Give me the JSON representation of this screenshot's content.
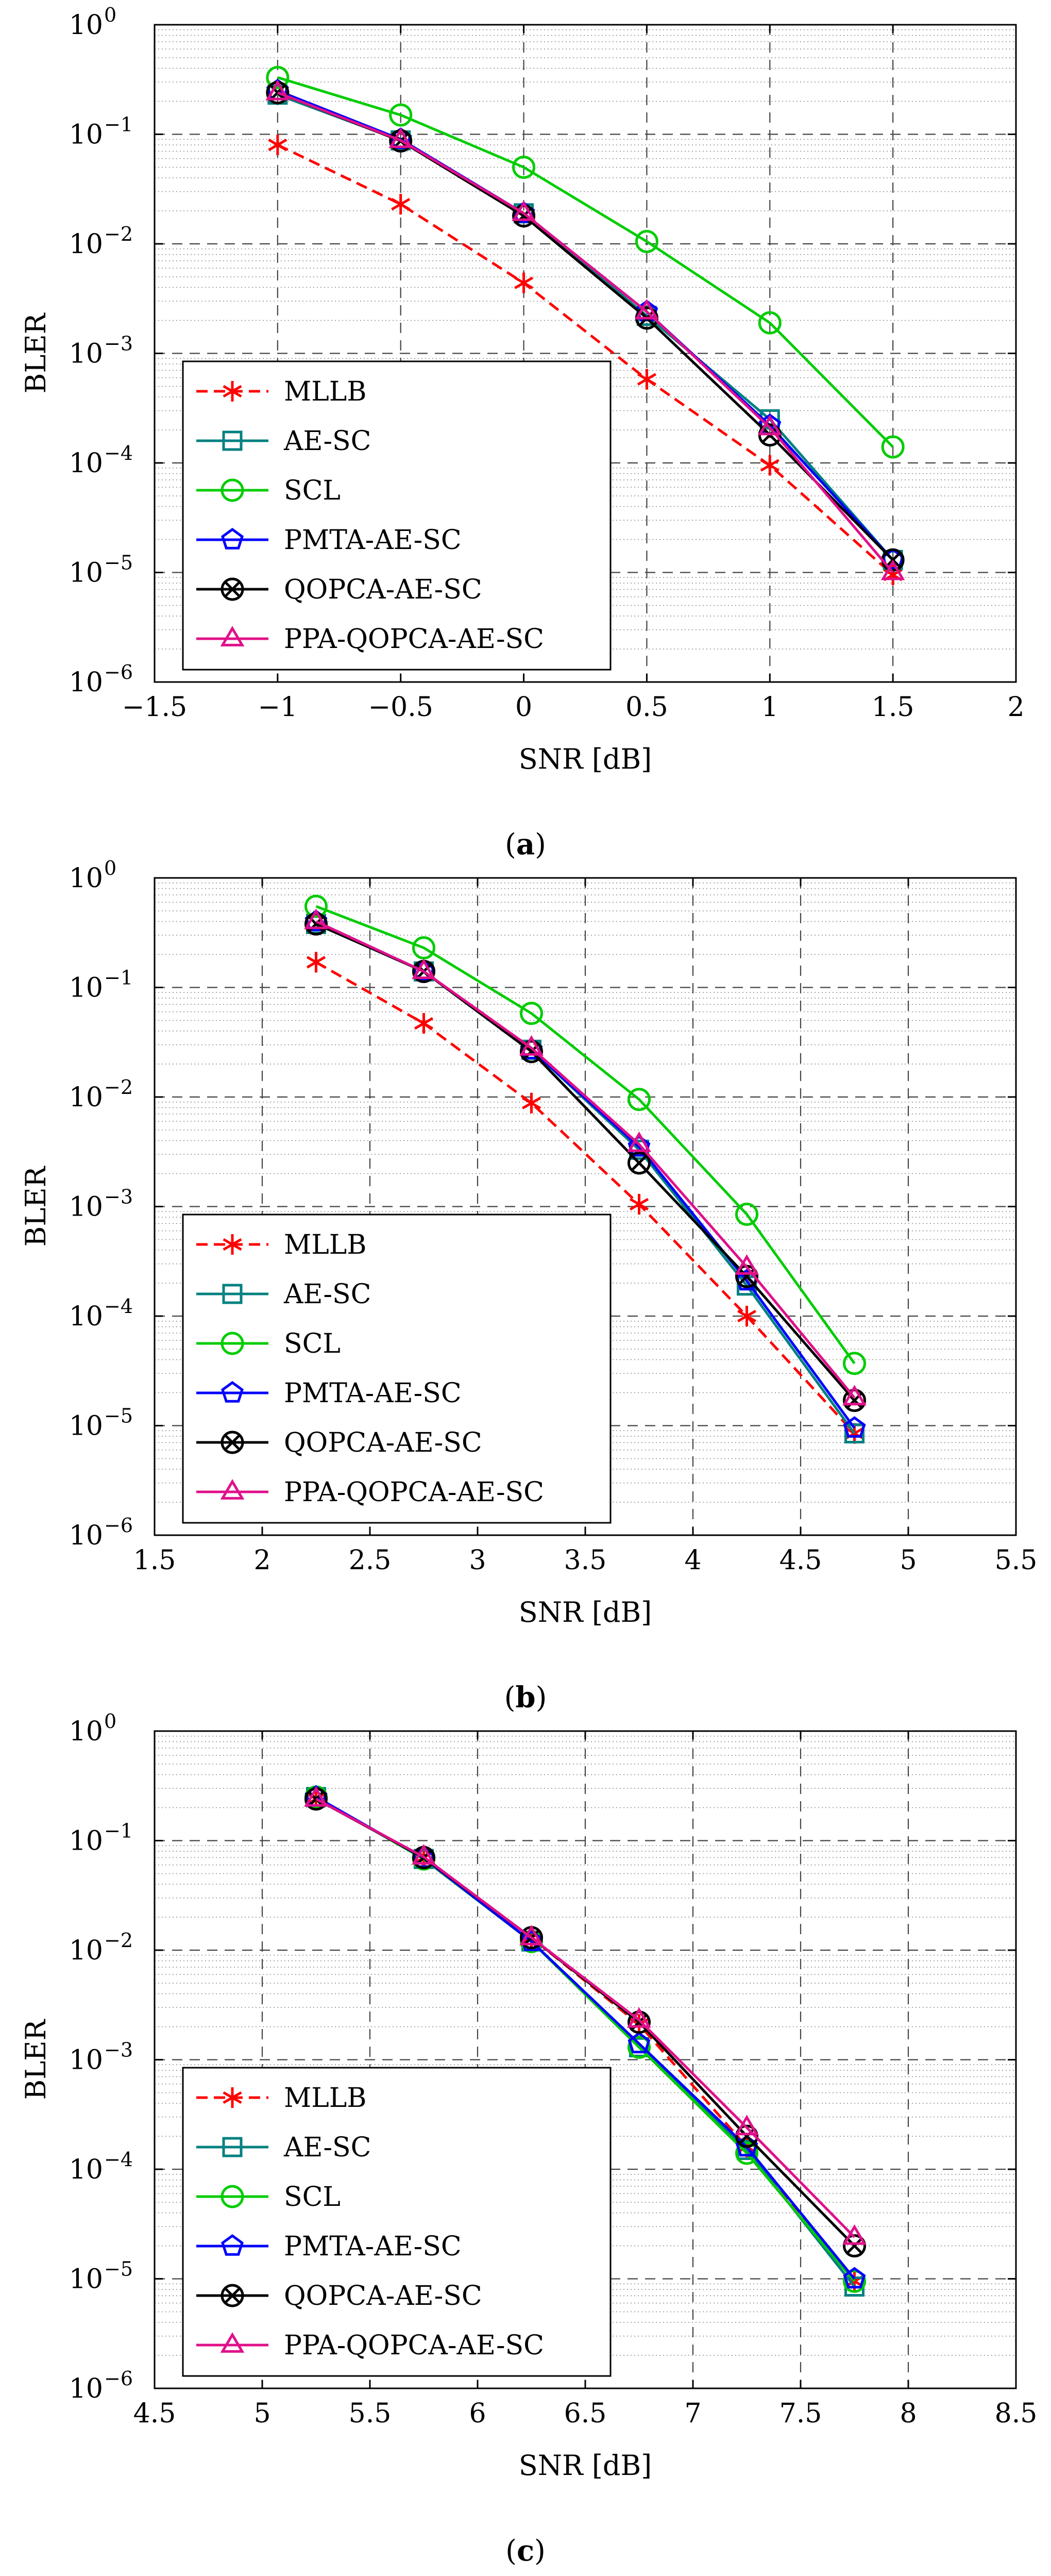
{
  "chart_data": [
    {
      "type": "line",
      "panel_label": "(a)",
      "xlabel": "SNR [dB]",
      "ylabel": "BLER",
      "xlim": [
        -1.5,
        2
      ],
      "ylim_log10": [
        -6,
        0
      ],
      "x_ticks": [
        -1.5,
        -1,
        -0.5,
        0,
        0.5,
        1,
        1.5,
        2
      ],
      "x_tick_labels": [
        "−1.5",
        "−1",
        "−0.5",
        "0",
        "0.5",
        "1",
        "1.5",
        "2"
      ],
      "y_tick_exponents": [
        0,
        -1,
        -2,
        -3,
        -4,
        -5,
        -6
      ],
      "y_tick_base": "10",
      "y_tick_exp_labels": [
        "0",
        "−1",
        "−2",
        "−3",
        "−4",
        "−5",
        "−6"
      ],
      "grid": true,
      "legend_position": "bottom-left",
      "series": [
        {
          "name": "MLLB",
          "color": "#ff0000",
          "marker": "asterisk",
          "dashed": true,
          "x": [
            -1,
            -0.5,
            0,
            0.5,
            1,
            1.5
          ],
          "y": [
            0.08,
            0.023,
            0.0044,
            0.00058,
            9.51e-05,
            9.5e-06
          ]
        },
        {
          "name": "AE-SC",
          "color": "#008080",
          "marker": "square",
          "dashed": false,
          "x": [
            -1,
            -0.5,
            0,
            0.5,
            1,
            1.5
          ],
          "y": [
            0.23,
            0.088,
            0.019,
            0.0022,
            0.00025,
            1.3e-05
          ]
        },
        {
          "name": "SCL",
          "color": "#00cc00",
          "marker": "circle",
          "dashed": false,
          "x": [
            -1,
            -0.5,
            0,
            0.5,
            1,
            1.5
          ],
          "y": [
            0.33,
            0.15,
            0.05,
            0.0105,
            0.0019,
            0.00014
          ]
        },
        {
          "name": "PMTA-AE-SC",
          "color": "#0000ff",
          "marker": "pentagon",
          "dashed": false,
          "x": [
            -1,
            -0.5,
            0,
            0.5,
            1,
            1.5
          ],
          "y": [
            0.25,
            0.09,
            0.019,
            0.0024,
            0.00022,
            1.3e-05
          ]
        },
        {
          "name": "QOPCA-AE-SC",
          "color": "#000000",
          "marker": "otimes",
          "dashed": false,
          "x": [
            -1,
            -0.5,
            0,
            0.5,
            1,
            1.5
          ],
          "y": [
            0.24,
            0.087,
            0.018,
            0.0021,
            0.00018,
            1.3e-05
          ]
        },
        {
          "name": "PPA-QOPCA-AE-SC",
          "color": "#e0108a",
          "marker": "triangle",
          "dashed": false,
          "x": [
            -1,
            -0.5,
            0,
            0.5,
            1,
            1.5
          ],
          "y": [
            0.24,
            0.088,
            0.019,
            0.0024,
            0.00021,
            1e-05
          ]
        }
      ]
    },
    {
      "type": "line",
      "panel_label": "(b)",
      "xlabel": "SNR [dB]",
      "ylabel": "BLER",
      "xlim": [
        1.5,
        5.5
      ],
      "ylim_log10": [
        -6,
        0
      ],
      "x_ticks": [
        1.5,
        2,
        2.5,
        3,
        3.5,
        4,
        4.5,
        5,
        5.5
      ],
      "x_tick_labels": [
        "1.5",
        "2",
        "2.5",
        "3",
        "3.5",
        "4",
        "4.5",
        "5",
        "5.5"
      ],
      "y_tick_exponents": [
        0,
        -1,
        -2,
        -3,
        -4,
        -5,
        -6
      ],
      "y_tick_base": "10",
      "y_tick_exp_labels": [
        "0",
        "−1",
        "−2",
        "−3",
        "−4",
        "−5",
        "−6"
      ],
      "grid": true,
      "legend_position": "bottom-left",
      "series": [
        {
          "name": "MLLB",
          "color": "#ff0000",
          "marker": "asterisk",
          "dashed": true,
          "x": [
            2.25,
            2.75,
            3.25,
            3.75,
            4.25,
            4.75
          ],
          "y": [
            0.17,
            0.047,
            0.0088,
            0.00105,
            0.0001,
            8.5e-06
          ]
        },
        {
          "name": "AE-SC",
          "color": "#008080",
          "marker": "square",
          "dashed": false,
          "x": [
            2.25,
            2.75,
            3.25,
            3.75,
            4.25,
            4.75
          ],
          "y": [
            0.38,
            0.14,
            0.027,
            0.0033,
            0.00019,
            8.5e-06
          ]
        },
        {
          "name": "SCL",
          "color": "#00cc00",
          "marker": "circle",
          "dashed": false,
          "x": [
            2.25,
            2.75,
            3.25,
            3.75,
            4.25,
            4.75
          ],
          "y": [
            0.55,
            0.23,
            0.058,
            0.0095,
            0.00085,
            3.7e-05
          ]
        },
        {
          "name": "PMTA-AE-SC",
          "color": "#0000ff",
          "marker": "pentagon",
          "dashed": false,
          "x": [
            2.25,
            2.75,
            3.25,
            3.75,
            4.25,
            4.75
          ],
          "y": [
            0.4,
            0.14,
            0.027,
            0.0035,
            0.00021,
            9.5e-06
          ]
        },
        {
          "name": "QOPCA-AE-SC",
          "color": "#000000",
          "marker": "otimes",
          "dashed": false,
          "x": [
            2.25,
            2.75,
            3.25,
            3.75,
            4.25,
            4.75
          ],
          "y": [
            0.38,
            0.14,
            0.026,
            0.0025,
            0.00023,
            1.7e-05
          ]
        },
        {
          "name": "PPA-QOPCA-AE-SC",
          "color": "#e0108a",
          "marker": "triangle",
          "dashed": false,
          "x": [
            2.25,
            2.75,
            3.25,
            3.75,
            4.25,
            4.75
          ],
          "y": [
            0.4,
            0.14,
            0.028,
            0.0037,
            0.00028,
            1.8e-05
          ]
        }
      ]
    },
    {
      "type": "line",
      "panel_label": "(c)",
      "xlabel": "SNR [dB]",
      "ylabel": "BLER",
      "xlim": [
        4.5,
        8.5
      ],
      "ylim_log10": [
        -6,
        0
      ],
      "x_ticks": [
        4.5,
        5,
        5.5,
        6,
        6.5,
        7,
        7.5,
        8,
        8.5
      ],
      "x_tick_labels": [
        "4.5",
        "5",
        "5.5",
        "6",
        "6.5",
        "7",
        "7.5",
        "8",
        "8.5"
      ],
      "y_tick_exponents": [
        0,
        -1,
        -2,
        -3,
        -4,
        -5,
        -6
      ],
      "y_tick_base": "10",
      "y_tick_exp_labels": [
        "0",
        "−1",
        "−2",
        "−3",
        "−4",
        "−5",
        "−6"
      ],
      "grid": true,
      "legend_position": "bottom-left",
      "series": [
        {
          "name": "MLLB",
          "color": "#ff0000",
          "marker": "asterisk",
          "dashed": true,
          "x": [
            5.25,
            5.75,
            6.25,
            6.75,
            7.25,
            7.75
          ],
          "y": [
            0.24,
            0.07,
            0.013,
            0.0021,
            0.00016,
            9.5e-06
          ]
        },
        {
          "name": "AE-SC",
          "color": "#008080",
          "marker": "square",
          "dashed": false,
          "x": [
            5.25,
            5.75,
            6.25,
            6.75,
            7.25,
            7.75
          ],
          "y": [
            0.25,
            0.068,
            0.012,
            0.0013,
            0.00015,
            8.5e-06
          ]
        },
        {
          "name": "SCL",
          "color": "#00cc00",
          "marker": "circle",
          "dashed": false,
          "x": [
            5.25,
            5.75,
            6.25,
            6.75,
            7.25,
            7.75
          ],
          "y": [
            0.25,
            0.068,
            0.012,
            0.0013,
            0.00014,
            9.5e-06
          ]
        },
        {
          "name": "PMTA-AE-SC",
          "color": "#0000ff",
          "marker": "pentagon",
          "dashed": false,
          "x": [
            5.25,
            5.75,
            6.25,
            6.75,
            7.25,
            7.75
          ],
          "y": [
            0.25,
            0.069,
            0.012,
            0.0014,
            0.00016,
            1e-05
          ]
        },
        {
          "name": "QOPCA-AE-SC",
          "color": "#000000",
          "marker": "otimes",
          "dashed": false,
          "x": [
            5.25,
            5.75,
            6.25,
            6.75,
            7.25,
            7.75
          ],
          "y": [
            0.24,
            0.07,
            0.013,
            0.0022,
            0.0002,
            2e-05
          ]
        },
        {
          "name": "PPA-QOPCA-AE-SC",
          "color": "#e0108a",
          "marker": "triangle",
          "dashed": false,
          "x": [
            5.25,
            5.75,
            6.25,
            6.75,
            7.25,
            7.75
          ],
          "y": [
            0.24,
            0.071,
            0.013,
            0.0023,
            0.00024,
            2.4e-05
          ]
        }
      ]
    }
  ]
}
